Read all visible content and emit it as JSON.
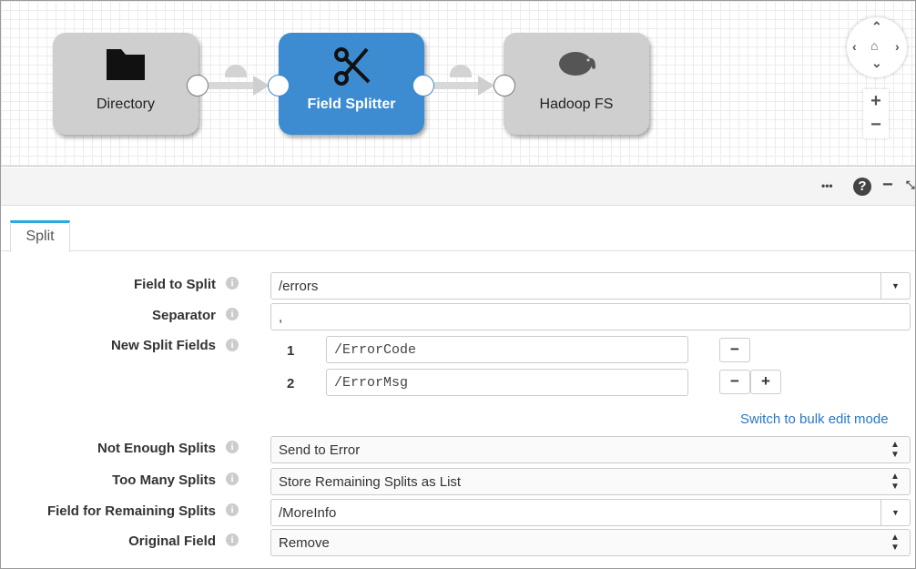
{
  "pipeline": {
    "nodes": [
      {
        "label": "Directory",
        "icon": "folder-icon"
      },
      {
        "label": "Field Splitter",
        "icon": "scissors-icon",
        "selected": true
      },
      {
        "label": "Hadoop FS",
        "icon": "hadoop-elephant-icon"
      }
    ],
    "accent": "#3d8bd0"
  },
  "canvas_controls": {
    "zoom_in": "+",
    "zoom_out": "−"
  },
  "toolbar": {
    "more": "•••",
    "help": "?",
    "minimize": "−"
  },
  "tabs": [
    {
      "label": "Split",
      "active": true
    }
  ],
  "form": {
    "field_to_split": {
      "label": "Field to Split",
      "value": "/errors"
    },
    "separator": {
      "label": "Separator",
      "value": ","
    },
    "new_split_fields": {
      "label": "New Split Fields",
      "items": [
        {
          "index": "1",
          "value": "/ErrorCode"
        },
        {
          "index": "2",
          "value": "/ErrorMsg"
        }
      ]
    },
    "bulk_edit_link": "Switch to bulk edit mode",
    "not_enough_splits": {
      "label": "Not Enough Splits",
      "value": "Send to Error"
    },
    "too_many_splits": {
      "label": "Too Many Splits",
      "value": "Store Remaining Splits as List"
    },
    "field_for_remaining": {
      "label": "Field for Remaining Splits",
      "value": "/MoreInfo"
    },
    "original_field": {
      "label": "Original Field",
      "value": "Remove"
    }
  }
}
